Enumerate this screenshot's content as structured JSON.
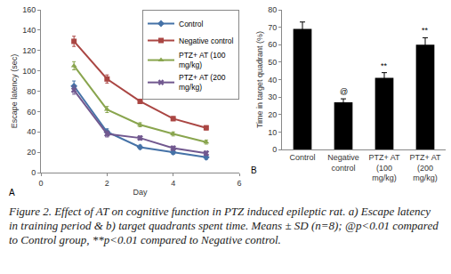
{
  "chart_data": [
    {
      "type": "line",
      "annotations": [
        {
          "text": "A"
        }
      ],
      "x": [
        1,
        2,
        3,
        4,
        5
      ],
      "xlabel": "Day",
      "ylabel": "Escape latency (sec)",
      "xlim": [
        0,
        6
      ],
      "xticks": [
        0,
        2,
        4,
        6
      ],
      "ylim": [
        0,
        160
      ],
      "yticks": [
        0,
        20,
        40,
        60,
        80,
        100,
        120,
        140,
        160
      ],
      "grid": false,
      "legend": "top right",
      "series": [
        {
          "name": "Control",
          "color": "#4572a7",
          "marker": "diamond",
          "values": [
            85,
            40,
            25,
            20,
            15
          ],
          "errors": [
            5,
            3,
            2,
            2,
            2
          ]
        },
        {
          "name": "Negative control",
          "color": "#aa4643",
          "marker": "square",
          "values": [
            129,
            92,
            70,
            53,
            44
          ],
          "errors": [
            5,
            4,
            2,
            2,
            2
          ]
        },
        {
          "name": "PTZ+ AT (100 mg/kg)",
          "color": "#89a54e",
          "marker": "triangle",
          "values": [
            105,
            62,
            47,
            38,
            30
          ],
          "errors": [
            4,
            3,
            2,
            2,
            2
          ]
        },
        {
          "name": "PTZ+ AT (200 mg/kg)",
          "color": "#71588f",
          "marker": "x",
          "values": [
            81,
            38,
            34,
            24,
            19
          ],
          "errors": [
            4,
            3,
            2,
            2,
            2
          ]
        }
      ]
    },
    {
      "type": "bar",
      "annotations": [
        {
          "text": "B"
        },
        {
          "text": "@",
          "category": "Negative control"
        },
        {
          "text": "**",
          "category": "PTZ+ AT (100 mg/kg)"
        },
        {
          "text": "**",
          "category": "PTZ+ AT (200 mg/kg)"
        }
      ],
      "categories": [
        "Control",
        "Negative control",
        "PTZ+ AT (100 mg/kg)",
        "PTZ+ AT (200 mg/kg)"
      ],
      "values": [
        69,
        27,
        41,
        60
      ],
      "errors": [
        4,
        2,
        3,
        4
      ],
      "color": "#000000",
      "ylabel": "Time in target quadrant (%)",
      "ylim": [
        0,
        80
      ],
      "yticks": [
        0,
        10,
        20,
        30,
        40,
        50,
        60,
        70,
        80
      ],
      "grid": false
    }
  ],
  "caption": "Figure 2. Effect of AT on cognitive function in PTZ induced epileptic rat. a) Escape latency in training period & b) target quadrants spent time. Means ± SD (n=8); @p<0.01 compared to Control group, **p<0.01 compared to Negative control."
}
